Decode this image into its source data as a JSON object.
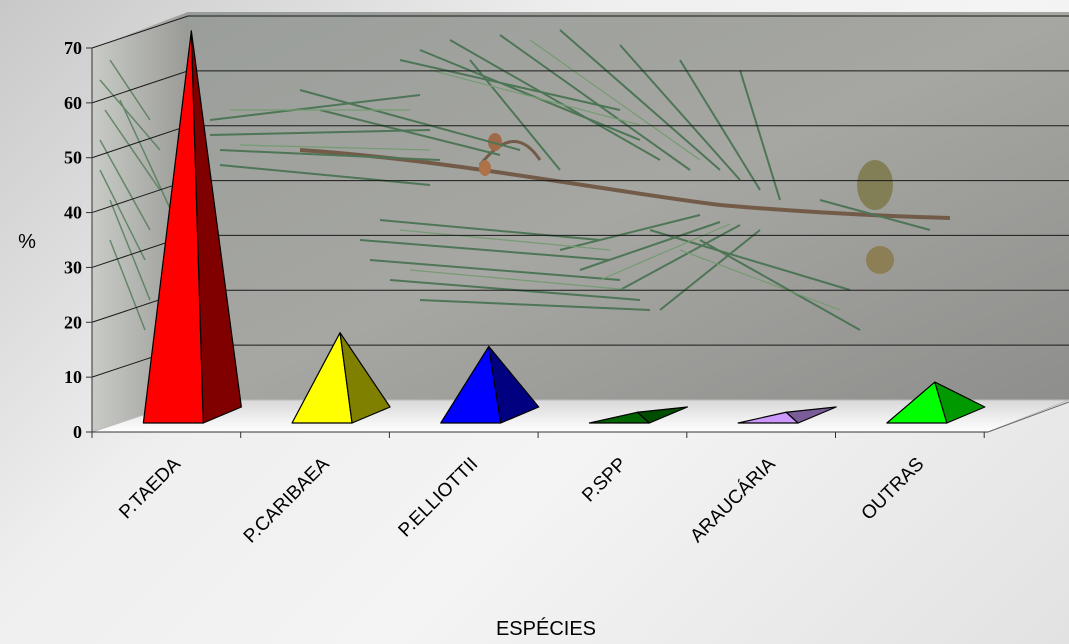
{
  "chart_data": {
    "type": "bar",
    "style": "3d-pyramid",
    "categories": [
      "P.TAEDA",
      "P.CARIBAEA",
      "P.ELLIOTTII",
      "P.SPP",
      "ARAUCÁRIA",
      "OUTRAS"
    ],
    "values": [
      70,
      15,
      12.5,
      0.5,
      0.5,
      6
    ],
    "ylabel": "%",
    "xlabel": "ESPÉCIES",
    "ylim": [
      0,
      70
    ],
    "yticks": [
      "0",
      "10",
      "20",
      "30",
      "40",
      "50",
      "60",
      "70"
    ],
    "grid": true,
    "background": "pine-branch-photo",
    "colors": [
      {
        "front": "#ff0000",
        "side": "#800000"
      },
      {
        "front": "#ffff00",
        "side": "#808000"
      },
      {
        "front": "#0000ff",
        "side": "#000080"
      },
      {
        "front": "#006400",
        "side": "#004d00"
      },
      {
        "front": "#cc99ff",
        "side": "#7a5c99"
      },
      {
        "front": "#00ff00",
        "side": "#009900"
      }
    ]
  }
}
